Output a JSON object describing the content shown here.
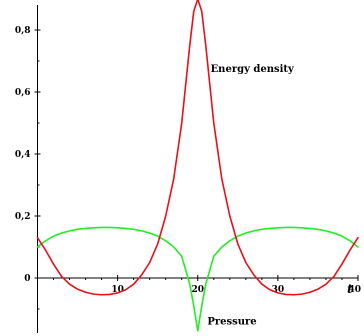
{
  "chart_data": {
    "type": "line",
    "title": "",
    "xlabel": "t",
    "ylabel": "",
    "xlim": [
      0,
      40
    ],
    "ylim": [
      -0.17,
      0.9
    ],
    "x_ticks": [
      10,
      20,
      30,
      40
    ],
    "x_tick_labels": [
      "10",
      "20",
      "30",
      ""
    ],
    "y_ticks": [
      0,
      0.2,
      0.4,
      0.6,
      0.8
    ],
    "y_tick_labels": [
      "0",
      "0,2",
      "0,4",
      "0,6",
      "0,8"
    ],
    "grid": false,
    "colors": {
      "energy": "#e8101a",
      "pressure": "#22ee22"
    },
    "annotations": [
      {
        "text": "Energy density",
        "x": 21.6,
        "y": 0.665
      },
      {
        "text": "Pressure",
        "x": 21.2,
        "y": -0.15
      }
    ],
    "series": [
      {
        "name": "Energy density",
        "color": "#e8101a",
        "x": [
          0,
          1,
          2,
          3,
          4,
          5,
          6,
          7,
          8,
          9,
          10,
          11,
          12,
          13,
          14,
          15,
          16,
          17,
          18,
          19,
          19.5,
          20,
          20.5,
          21,
          22,
          23,
          24,
          25,
          26,
          27,
          28,
          29,
          30,
          31,
          32,
          33,
          34,
          35,
          36,
          37,
          38,
          39,
          40
        ],
        "y": [
          0.13,
          0.09,
          0.045,
          0.005,
          -0.02,
          -0.036,
          -0.046,
          -0.052,
          -0.054,
          -0.053,
          -0.048,
          -0.038,
          -0.02,
          0.01,
          0.05,
          0.11,
          0.2,
          0.32,
          0.5,
          0.75,
          0.86,
          0.9,
          0.86,
          0.75,
          0.5,
          0.32,
          0.2,
          0.11,
          0.05,
          0.01,
          -0.02,
          -0.038,
          -0.048,
          -0.053,
          -0.054,
          -0.052,
          -0.046,
          -0.036,
          -0.02,
          0.005,
          0.045,
          0.09,
          0.13
        ]
      },
      {
        "name": "Pressure",
        "color": "#22ee22",
        "x": [
          0,
          1,
          2,
          3,
          4,
          5,
          6,
          7,
          8,
          9,
          10,
          11,
          12,
          13,
          14,
          15,
          16,
          17,
          18,
          19,
          19.5,
          20,
          20.5,
          21,
          22,
          23,
          24,
          25,
          26,
          27,
          28,
          29,
          30,
          31,
          32,
          33,
          34,
          35,
          36,
          37,
          38,
          39,
          40
        ],
        "y": [
          0.1,
          0.12,
          0.135,
          0.145,
          0.152,
          0.157,
          0.16,
          0.162,
          0.163,
          0.163,
          0.162,
          0.16,
          0.157,
          0.152,
          0.145,
          0.135,
          0.12,
          0.1,
          0.07,
          -0.02,
          -0.09,
          -0.17,
          -0.09,
          -0.02,
          0.07,
          0.1,
          0.12,
          0.135,
          0.145,
          0.152,
          0.157,
          0.16,
          0.162,
          0.163,
          0.163,
          0.162,
          0.16,
          0.157,
          0.152,
          0.145,
          0.135,
          0.12,
          0.1
        ]
      }
    ]
  }
}
